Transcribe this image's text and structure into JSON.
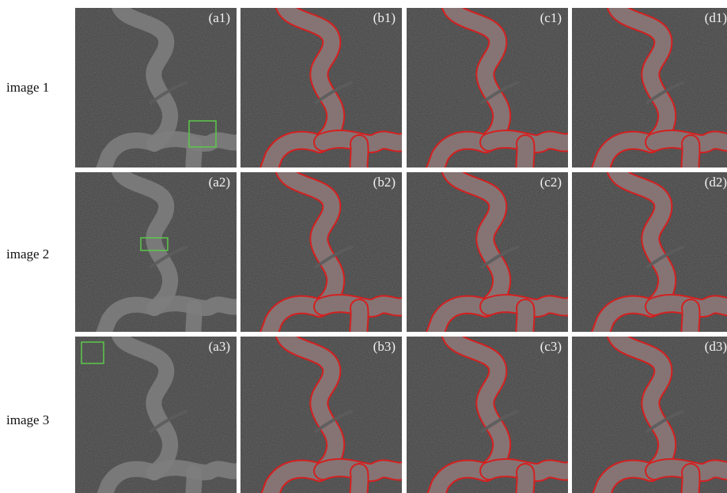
{
  "row_labels": [
    "image 1",
    "image 2",
    "image 3"
  ],
  "panels": [
    [
      "(a1)",
      "(b1)",
      "(c1)",
      "(d1)"
    ],
    [
      "(a2)",
      "(b2)",
      "(c2)",
      "(d2)"
    ],
    [
      "(a3)",
      "(b3)",
      "(c3)",
      "(d3)"
    ]
  ]
}
